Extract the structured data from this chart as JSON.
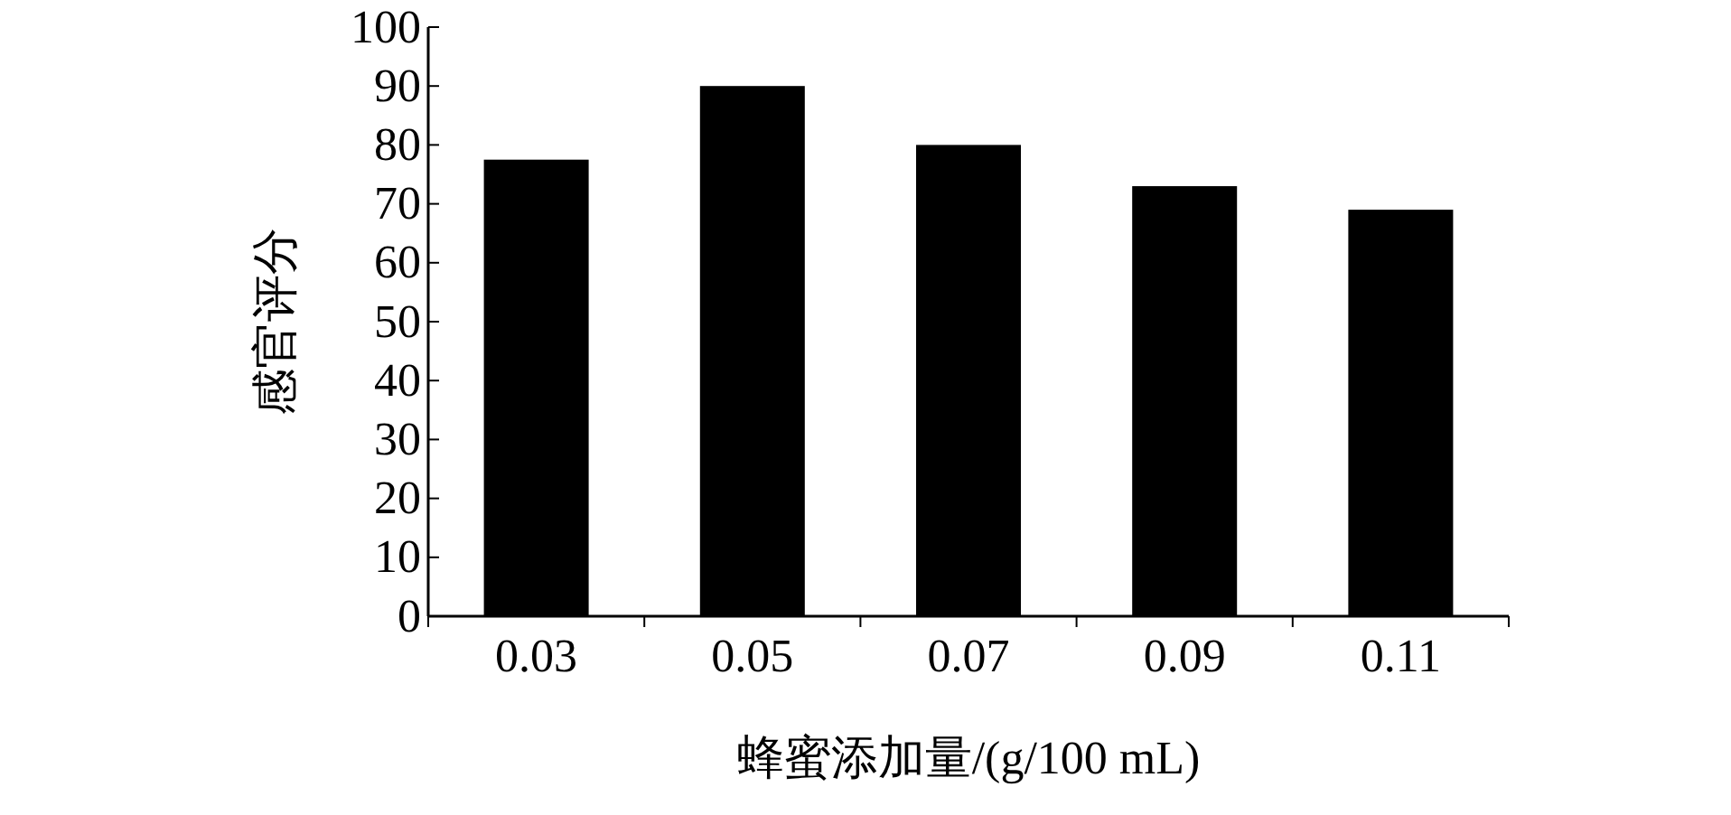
{
  "chart_data": {
    "type": "bar",
    "xlabel": "蜂蜜添加量/(g/100 mL)",
    "ylabel": "感官评分",
    "categories": [
      "0.03",
      "0.05",
      "0.07",
      "0.09",
      "0.11"
    ],
    "values": [
      77.5,
      90,
      80,
      73,
      69
    ],
    "color": "#000000",
    "ylim": [
      0,
      100
    ],
    "yticks": [
      0,
      10,
      20,
      30,
      40,
      50,
      60,
      70,
      80,
      90,
      100
    ],
    "grid": false
  }
}
